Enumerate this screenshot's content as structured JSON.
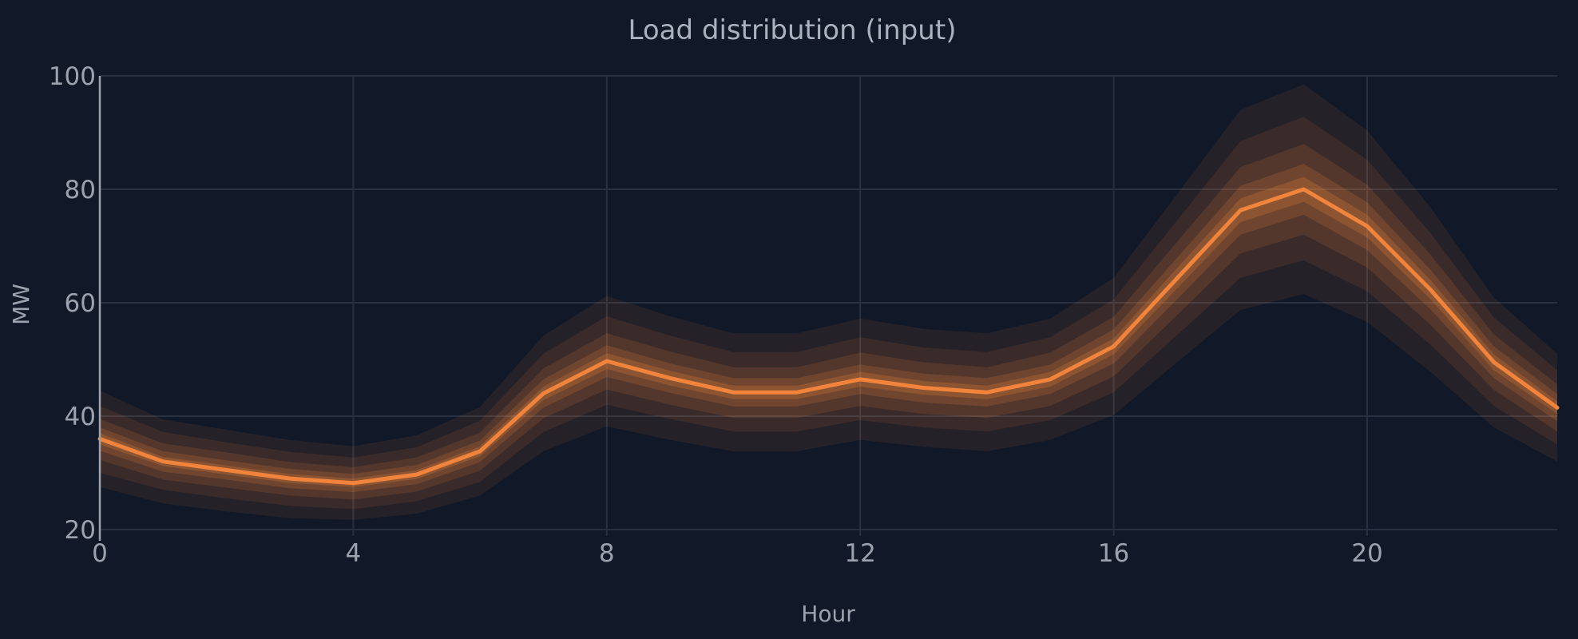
{
  "chart_data": {
    "type": "area",
    "title": "Load distribution (input)",
    "xlabel": "Hour",
    "ylabel": "MW",
    "xlim": [
      0,
      23
    ],
    "ylim": [
      20,
      100
    ],
    "x_ticks": [
      0,
      4,
      8,
      12,
      16,
      20
    ],
    "y_ticks": [
      20,
      40,
      60,
      80,
      100
    ],
    "grid": true,
    "x": [
      0,
      1,
      2,
      3,
      4,
      5,
      6,
      7,
      8,
      9,
      10,
      11,
      12,
      13,
      14,
      15,
      16,
      17,
      18,
      19,
      20,
      21,
      22,
      23
    ],
    "median": [
      36,
      32,
      30.5,
      29,
      28.2,
      29.7,
      33.8,
      44,
      49.7,
      46.7,
      44.2,
      44.2,
      46.5,
      45,
      44.2,
      46.5,
      52.3,
      64.3,
      76.3,
      80,
      73.5,
      62.3,
      49.5,
      41.5
    ],
    "bands": [
      {
        "quantiles": [
          0.05,
          0.95
        ],
        "lower": [
          27.5,
          24.6,
          23.2,
          22,
          21.7,
          22.8,
          26,
          33.8,
          38.2,
          35.8,
          33.8,
          33.8,
          35.8,
          34.6,
          33.8,
          35.8,
          40.2,
          49.5,
          58.7,
          61.5,
          56.6,
          47.8,
          38,
          32
        ],
        "upper": [
          44.5,
          39.4,
          37.6,
          35.8,
          34.7,
          36.6,
          41.6,
          54.2,
          61.2,
          57.6,
          54.6,
          54.6,
          57.2,
          55.4,
          54.6,
          57.2,
          64.4,
          79.1,
          94,
          98.5,
          90.4,
          76.8,
          60.9,
          51
        ]
      },
      {
        "quantiles": [
          0.1,
          0.9
        ],
        "lower": [
          30,
          27,
          25.5,
          24.2,
          23.6,
          25,
          28.4,
          37.2,
          42,
          39.5,
          37.3,
          37.3,
          39.3,
          38,
          37.3,
          39.3,
          44.2,
          54.3,
          64.4,
          67.5,
          62,
          52.6,
          41.8,
          35
        ],
        "upper": [
          41.8,
          37.2,
          35.4,
          33.7,
          32.7,
          34.5,
          39.2,
          51,
          57.6,
          54.2,
          51.3,
          51.3,
          53.9,
          52.1,
          51.3,
          53.9,
          60.6,
          74.5,
          88.5,
          92.8,
          85.2,
          72.3,
          57.4,
          48.1
        ]
      },
      {
        "quantiles": [
          0.2,
          0.8
        ],
        "lower": [
          32.3,
          28.8,
          27.4,
          26,
          25.3,
          26.7,
          30.4,
          39.6,
          44.7,
          42,
          39.7,
          39.7,
          41.8,
          40.4,
          39.7,
          41.8,
          47,
          57.8,
          68.7,
          72,
          66.2,
          56.1,
          44.6,
          37.3
        ],
        "upper": [
          39.5,
          35.2,
          33.6,
          31.9,
          31,
          32.7,
          37.1,
          48.4,
          54.6,
          51.4,
          48.6,
          48.6,
          51.2,
          49.5,
          48.6,
          51.2,
          57.5,
          70.7,
          83.9,
          88,
          80.8,
          68.5,
          54.4,
          45.6
        ]
      },
      {
        "quantiles": [
          0.3,
          0.7
        ],
        "lower": [
          33.9,
          30.2,
          28.8,
          27.3,
          26.6,
          28,
          31.9,
          41.5,
          46.9,
          44.1,
          41.7,
          41.7,
          43.9,
          42.4,
          41.7,
          43.9,
          49.3,
          60.6,
          72,
          75.5,
          69.3,
          58.8,
          46.7,
          39.1
        ],
        "upper": [
          38,
          33.8,
          32.2,
          30.7,
          29.8,
          31.4,
          35.7,
          46.5,
          52.5,
          49.3,
          46.7,
          46.7,
          49.1,
          47.5,
          46.7,
          49.1,
          55.3,
          67.9,
          80.6,
          84.5,
          77.7,
          65.8,
          52.3,
          43.9
        ]
      },
      {
        "quantiles": [
          0.4,
          0.6
        ],
        "lower": [
          35,
          31.2,
          29.7,
          28.2,
          27.5,
          28.9,
          32.9,
          42.8,
          48.3,
          45.4,
          43,
          43,
          45.2,
          43.8,
          43,
          45.2,
          50.9,
          62.5,
          74.2,
          77.8,
          71.5,
          60.6,
          48.1,
          40.4
        ],
        "upper": [
          37,
          32.8,
          31.3,
          29.8,
          29,
          30.5,
          34.7,
          45.2,
          51.1,
          48,
          45.4,
          45.4,
          47.8,
          46.2,
          45.4,
          47.8,
          53.7,
          66.1,
          78.4,
          82.2,
          75.5,
          64,
          50.9,
          42.6
        ]
      }
    ],
    "colors": {
      "line": "#f0843c",
      "band": "#f0843c",
      "background": "#111827",
      "grid": "#263041",
      "text": "#9ca3af"
    }
  }
}
